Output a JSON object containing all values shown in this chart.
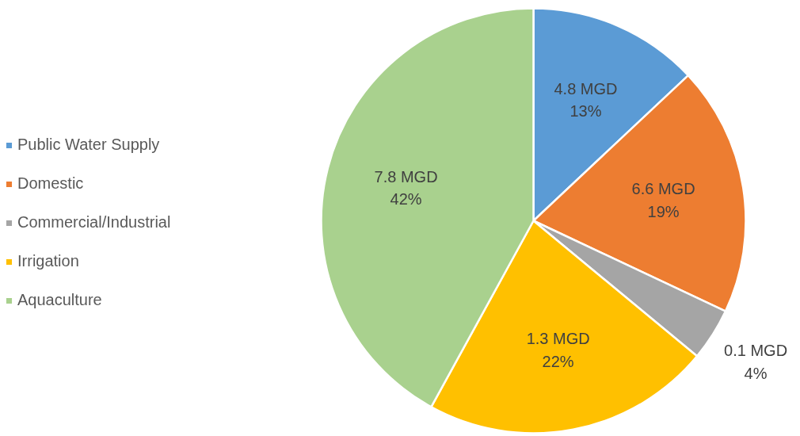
{
  "chart_data": {
    "type": "pie",
    "categories": [
      "Public Water Supply",
      "Domestic",
      "Commercial/Industrial",
      "Irrigation",
      "Aquaculture"
    ],
    "values": [
      13,
      19,
      4,
      22,
      42
    ],
    "colors": [
      "#5b9bd5",
      "#ed7d31",
      "#a5a5a5",
      "#ffc000",
      "#a9d18e"
    ],
    "value_labels": [
      "4.8 MGD\n13%",
      "6.6 MGD\n19%",
      "0.1 MGD\n4%",
      "1.3 MGD\n22%",
      "7.8 MGD\n42%"
    ],
    "legend": "left"
  }
}
